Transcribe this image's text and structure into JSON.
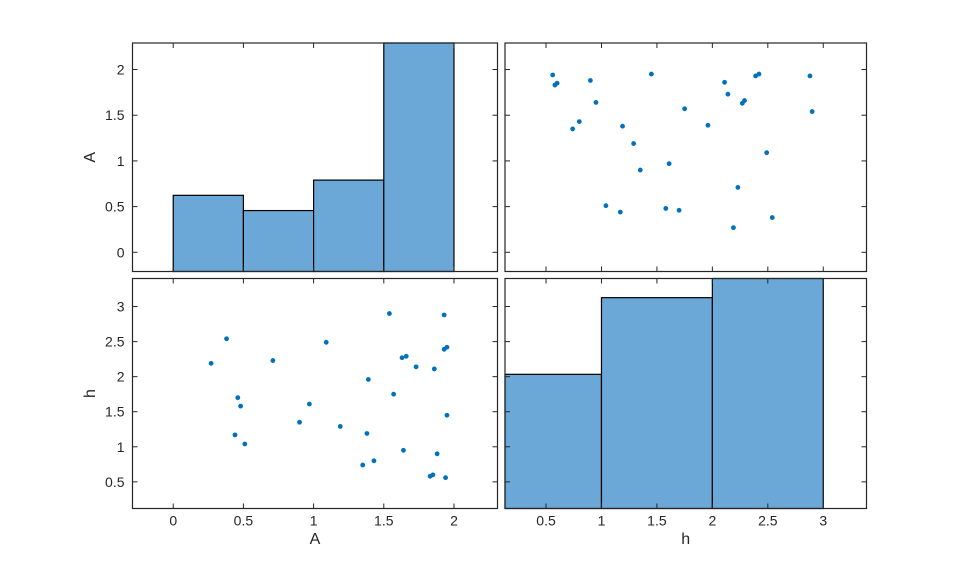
{
  "figure": {
    "kind": "plotmatrix",
    "background_color": "#ffffff",
    "variables": [
      "A",
      "h"
    ],
    "colors": {
      "marker": "#0072BD",
      "hist_fill": "#6BA8D7",
      "hist_edge": "#000000",
      "axis": "#262626",
      "text": "#262626"
    }
  },
  "chart_data": [
    {
      "id": "hist-A",
      "type": "bar",
      "grid_position": "top-left",
      "title": "",
      "xlabel": "",
      "ylabel": "A",
      "xlim": [
        -0.29,
        2.31
      ],
      "ylim": [
        -0.21,
        2.29
      ],
      "xticks": [
        0,
        0.5,
        1,
        1.5,
        2
      ],
      "yticks": [
        0,
        0.5,
        1,
        1.5,
        2
      ],
      "show_xtick_labels": false,
      "show_ytick_labels": true,
      "bin_edges": [
        0,
        0.5,
        1,
        1.5,
        2
      ],
      "counts": [
        5,
        4,
        6,
        15
      ],
      "bar_scaling": "max-count-fills-panel-height"
    },
    {
      "id": "scatter-h-vs-A",
      "type": "scatter",
      "grid_position": "top-right",
      "title": "",
      "xlabel": "",
      "ylabel": "",
      "xlim": [
        0.13,
        3.39
      ],
      "ylim": [
        -0.21,
        2.29
      ],
      "xticks": [
        0.5,
        1,
        1.5,
        2,
        2.5,
        3
      ],
      "yticks": [
        0,
        0.5,
        1,
        1.5,
        2
      ],
      "show_xtick_labels": false,
      "show_ytick_labels": false,
      "x": [
        2.19,
        2.54,
        1.7,
        1.58,
        1.17,
        1.04,
        2.23,
        1.35,
        1.61,
        2.49,
        1.29,
        0.74,
        1.19,
        1.96,
        0.8,
        2.9,
        1.75,
        2.27,
        2.29,
        0.95,
        2.14,
        0.58,
        0.6,
        2.11,
        0.9,
        2.88,
        2.39,
        2.42,
        1.45,
        0.56
      ],
      "y": [
        0.27,
        0.38,
        0.46,
        0.48,
        0.44,
        0.51,
        0.71,
        0.9,
        0.97,
        1.09,
        1.19,
        1.35,
        1.38,
        1.39,
        1.43,
        1.54,
        1.57,
        1.63,
        1.66,
        1.64,
        1.73,
        1.83,
        1.85,
        1.86,
        1.88,
        1.93,
        1.93,
        1.95,
        1.95,
        1.94
      ]
    },
    {
      "id": "scatter-A-vs-h",
      "type": "scatter",
      "grid_position": "bottom-left",
      "title": "",
      "xlabel": "A",
      "ylabel": "h",
      "xlim": [
        -0.29,
        2.31
      ],
      "ylim": [
        0.12,
        3.4
      ],
      "xticks": [
        0,
        0.5,
        1,
        1.5,
        2
      ],
      "yticks": [
        0.5,
        1,
        1.5,
        2,
        2.5,
        3
      ],
      "show_xtick_labels": true,
      "show_ytick_labels": true,
      "x": [
        0.27,
        0.38,
        0.46,
        0.48,
        0.44,
        0.51,
        0.71,
        0.9,
        0.97,
        1.09,
        1.19,
        1.35,
        1.38,
        1.39,
        1.43,
        1.54,
        1.57,
        1.63,
        1.66,
        1.64,
        1.73,
        1.83,
        1.85,
        1.86,
        1.88,
        1.93,
        1.93,
        1.95,
        1.95,
        1.94
      ],
      "y": [
        2.19,
        2.54,
        1.7,
        1.58,
        1.17,
        1.04,
        2.23,
        1.35,
        1.61,
        2.49,
        1.29,
        0.74,
        1.19,
        1.96,
        0.8,
        2.9,
        1.75,
        2.27,
        2.29,
        0.95,
        2.14,
        0.58,
        0.6,
        2.11,
        0.9,
        2.88,
        2.39,
        2.42,
        1.45,
        0.56
      ]
    },
    {
      "id": "hist-h",
      "type": "bar",
      "grid_position": "bottom-right",
      "title": "",
      "xlabel": "h",
      "ylabel": "",
      "xlim": [
        0.13,
        3.39
      ],
      "ylim": [
        0.12,
        3.4
      ],
      "xticks": [
        0.5,
        1,
        1.5,
        2,
        2.5,
        3
      ],
      "yticks": [
        0.5,
        1,
        1.5,
        2,
        2.5,
        3
      ],
      "show_xtick_labels": true,
      "show_ytick_labels": false,
      "bin_edges": [
        0,
        1,
        2,
        3
      ],
      "counts": [
        7,
        11,
        12
      ],
      "bar_scaling": "max-count-fills-panel-height"
    }
  ]
}
